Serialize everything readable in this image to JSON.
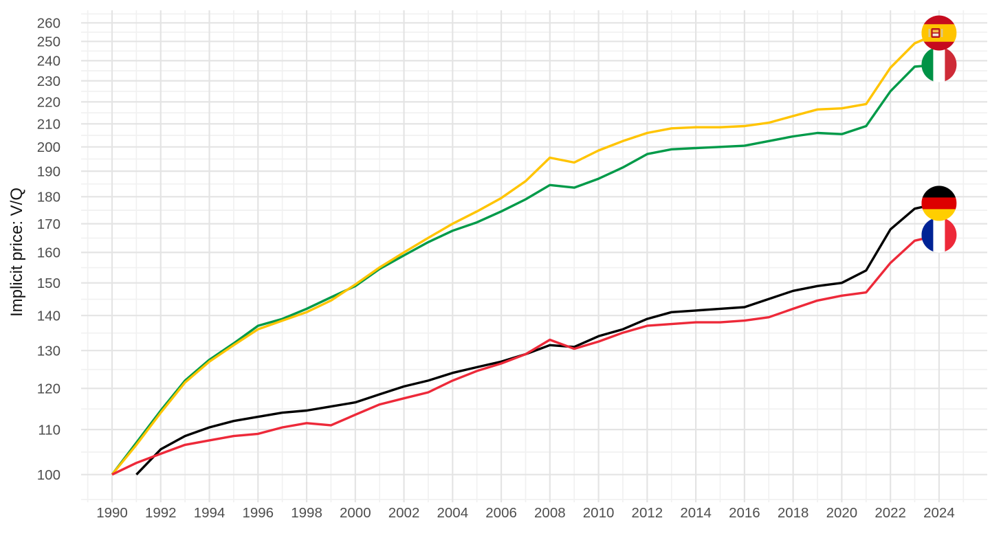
{
  "chart_data": {
    "type": "line",
    "title": "",
    "xlabel": "",
    "ylabel": "Implicit price: V/Q",
    "y_scale": "log10",
    "grid": "on",
    "legend": "flag-icons-at-line-ends",
    "x_ticks": [
      1990,
      1992,
      1994,
      1996,
      1998,
      2000,
      2002,
      2004,
      2006,
      2008,
      2010,
      2012,
      2014,
      2016,
      2018,
      2020,
      2022,
      2024
    ],
    "y_ticks": [
      100,
      110,
      120,
      130,
      140,
      150,
      160,
      170,
      180,
      190,
      200,
      210,
      220,
      230,
      240,
      250,
      260
    ],
    "ylim": [
      100,
      262
    ],
    "xlim": [
      1989,
      2025
    ],
    "axis_text_color": "#4d4d4d",
    "grid_major_color": "#e4e4e4",
    "grid_minor_color": "#f1f1f1",
    "series": [
      {
        "name": "Italy",
        "flag_id": "italy",
        "color": "#009A49",
        "flag": {
          "type": "vertical",
          "colors": [
            "#009246",
            "#ffffff",
            "#CE2B37"
          ],
          "fractions": [
            0.3333,
            0.3334,
            0.3333
          ]
        },
        "years": [
          1990,
          1991,
          1992,
          1993,
          1994,
          1995,
          1996,
          1997,
          1998,
          1999,
          2000,
          2001,
          2002,
          2003,
          2004,
          2005,
          2006,
          2007,
          2008,
          2009,
          2010,
          2011,
          2012,
          2013,
          2014,
          2015,
          2016,
          2017,
          2018,
          2019,
          2020,
          2021,
          2022,
          2023,
          2024
        ],
        "values": [
          100,
          107,
          114.5,
          122,
          127.5,
          132,
          137,
          139,
          142,
          145.5,
          149,
          154.5,
          159,
          163.5,
          167.5,
          170.5,
          174.5,
          179,
          184.5,
          183.5,
          187,
          191.5,
          197,
          199,
          199.5,
          200,
          200.5,
          202.5,
          204.5,
          206,
          205.5,
          209,
          225,
          237,
          238
        ]
      },
      {
        "name": "Spain",
        "flag_id": "spain",
        "color": "#FFC400",
        "flag": {
          "type": "horizontal",
          "colors": [
            "#C60B1E",
            "#FFC400",
            "#C60B1E"
          ],
          "fractions": [
            0.25,
            0.5,
            0.25
          ],
          "emblem": true
        },
        "years": [
          1990,
          1991,
          1992,
          1993,
          1994,
          1995,
          1996,
          1997,
          1998,
          1999,
          2000,
          2001,
          2002,
          2003,
          2004,
          2005,
          2006,
          2007,
          2008,
          2009,
          2010,
          2011,
          2012,
          2013,
          2014,
          2015,
          2016,
          2017,
          2018,
          2019,
          2020,
          2021,
          2022,
          2023,
          2024
        ],
        "values": [
          100,
          106.5,
          114,
          121.5,
          127,
          131.5,
          136,
          138.5,
          141,
          144.5,
          149.5,
          155,
          160,
          165,
          170,
          174.5,
          179.5,
          186,
          195.5,
          193.5,
          198.5,
          202.5,
          206,
          208,
          208.5,
          208.5,
          209,
          210.5,
          213.5,
          216.5,
          217,
          219,
          236.5,
          249,
          254.5
        ]
      },
      {
        "name": "Germany",
        "flag_id": "germany",
        "color": "#000000",
        "flag": {
          "type": "horizontal",
          "colors": [
            "#000000",
            "#DD0000",
            "#FFCE00"
          ],
          "fractions": [
            0.3333,
            0.3334,
            0.3333
          ]
        },
        "years": [
          1991,
          1992,
          1993,
          1994,
          1995,
          1996,
          1997,
          1998,
          1999,
          2000,
          2001,
          2002,
          2003,
          2004,
          2005,
          2006,
          2007,
          2008,
          2009,
          2010,
          2011,
          2012,
          2013,
          2014,
          2015,
          2016,
          2017,
          2018,
          2019,
          2020,
          2021,
          2022,
          2023,
          2024
        ],
        "values": [
          100,
          105.5,
          108.5,
          110.5,
          112,
          113,
          114,
          114.5,
          115.5,
          116.5,
          118.5,
          120.5,
          122,
          124,
          125.5,
          127,
          129,
          131.5,
          131,
          134,
          136,
          139,
          141,
          141.5,
          142,
          142.5,
          145,
          147.5,
          149,
          150,
          154,
          168,
          175.5,
          177.5
        ]
      },
      {
        "name": "France",
        "flag_id": "france",
        "color": "#ED2939",
        "flag": {
          "type": "vertical",
          "colors": [
            "#002395",
            "#ffffff",
            "#ED2939"
          ],
          "fractions": [
            0.3333,
            0.3334,
            0.3333
          ]
        },
        "years": [
          1990,
          1991,
          1992,
          1993,
          1994,
          1995,
          1996,
          1997,
          1998,
          1999,
          2000,
          2001,
          2002,
          2003,
          2004,
          2005,
          2006,
          2007,
          2008,
          2009,
          2010,
          2011,
          2012,
          2013,
          2014,
          2015,
          2016,
          2017,
          2018,
          2019,
          2020,
          2021,
          2022,
          2023,
          2024
        ],
        "values": [
          100,
          102.5,
          104.5,
          106.5,
          107.5,
          108.5,
          109,
          110.5,
          111.5,
          111,
          113.5,
          116,
          117.5,
          119,
          122,
          124.5,
          126.5,
          129,
          133,
          130.5,
          132.5,
          135,
          137,
          137.5,
          138,
          138,
          138.5,
          139.5,
          142,
          144.5,
          146,
          147,
          156.5,
          164,
          166
        ]
      }
    ],
    "flag_draw_order": [
      "france",
      "germany",
      "italy",
      "spain"
    ],
    "line_draw_order": [
      "Italy",
      "Spain",
      "Germany",
      "France"
    ]
  }
}
